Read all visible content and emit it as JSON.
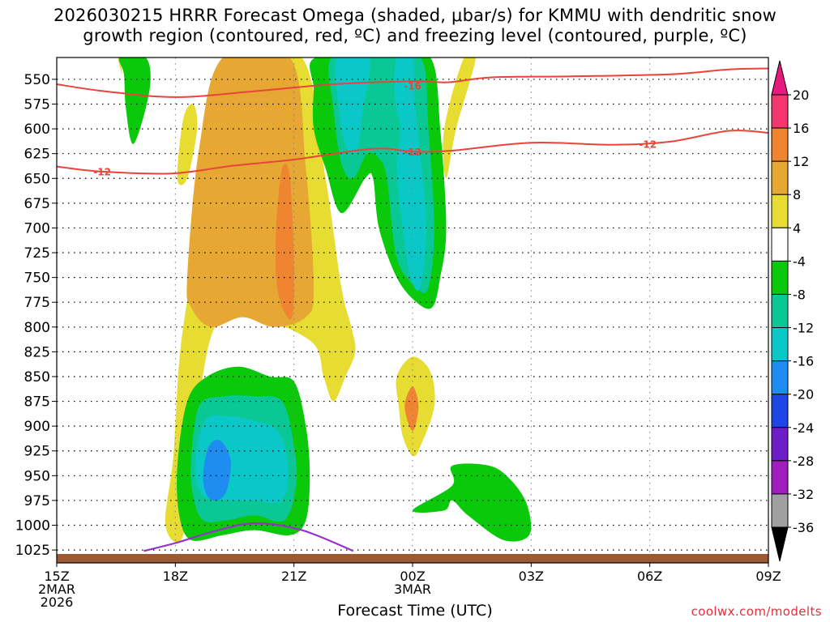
{
  "chart_data": {
    "type": "contour-timeheight",
    "title_line1": "2026030215 HRRR Forecast Omega (shaded, μbar/s) for KMMU with dendritic snow",
    "title_line2": "growth region (contoured, red, ºC) and freezing level (contoured, purple, ºC)",
    "xlabel": "Forecast Time (UTC)",
    "credit": "coolwx.com/modelts",
    "x_hours_range": [
      0,
      18
    ],
    "x_ticks": [
      {
        "h": 0,
        "lines": [
          "15Z",
          "2MAR",
          "2026"
        ]
      },
      {
        "h": 3,
        "lines": [
          "18Z"
        ]
      },
      {
        "h": 6,
        "lines": [
          "21Z"
        ]
      },
      {
        "h": 9,
        "lines": [
          "00Z",
          "3MAR"
        ]
      },
      {
        "h": 12,
        "lines": [
          "03Z"
        ]
      },
      {
        "h": 15,
        "lines": [
          "06Z"
        ]
      },
      {
        "h": 18,
        "lines": [
          "09Z"
        ]
      }
    ],
    "y_range_hpa": [
      528,
      1038
    ],
    "y_ticks": [
      550,
      575,
      600,
      625,
      650,
      675,
      700,
      725,
      750,
      775,
      800,
      825,
      850,
      875,
      900,
      925,
      950,
      975,
      1000,
      1025
    ],
    "colorbar": {
      "labels": [
        "20",
        "16",
        "12",
        "8",
        "4",
        "-4",
        "-8",
        "-12",
        "-16",
        "-20",
        "-24",
        "-28",
        "-32",
        "-36"
      ],
      "levels": [
        20,
        16,
        12,
        8,
        4,
        -4,
        -8,
        -12,
        -16,
        -20,
        -24,
        -28,
        -32,
        -36
      ],
      "colors": [
        "#f4366f",
        "#ef8431",
        "#e6a832",
        "#e6dc32",
        "#ffffff",
        "#0ac80a",
        "#0ac896",
        "#0ac8c8",
        "#1e8cf0",
        "#1e46e6",
        "#6e1ec8",
        "#a01ebe",
        "#a0a0a0"
      ],
      "top_arrow_color": "#e6197d",
      "bottom_arrow_color": "#000000"
    },
    "omega_regions": [
      {
        "level": 4,
        "color": "#e6dc32",
        "points": [
          [
            2.75,
            1000
          ],
          [
            2.95,
            930
          ],
          [
            3.15,
            815
          ],
          [
            3.7,
            680
          ],
          [
            4.1,
            570
          ],
          [
            4.5,
            528
          ],
          [
            6.2,
            528
          ],
          [
            6.8,
            650
          ],
          [
            7.2,
            760
          ],
          [
            7.45,
            800
          ],
          [
            7.55,
            825
          ],
          [
            7.3,
            850
          ],
          [
            7.0,
            875
          ],
          [
            6.75,
            850
          ],
          [
            6.45,
            815
          ],
          [
            5.0,
            790
          ],
          [
            4.0,
            800
          ],
          [
            3.5,
            905
          ],
          [
            3.2,
            1010
          ]
        ]
      },
      {
        "level": 4,
        "color": "#e6dc32",
        "points": [
          [
            3.05,
            650
          ],
          [
            3.2,
            590
          ],
          [
            3.45,
            575
          ],
          [
            3.55,
            600
          ],
          [
            3.3,
            650
          ]
        ]
      },
      {
        "level": 4,
        "color": "#e6dc32",
        "points": [
          [
            1.6,
            528
          ],
          [
            1.65,
            545
          ],
          [
            1.55,
            528
          ]
        ]
      },
      {
        "level": 4,
        "color": "#e6dc32",
        "points": [
          [
            10.3,
            528
          ],
          [
            10.6,
            528
          ],
          [
            10.1,
            600
          ],
          [
            9.85,
            650
          ],
          [
            9.8,
            600
          ]
        ]
      },
      {
        "level": 4,
        "color": "#e6dc32",
        "points": [
          [
            8.6,
            850
          ],
          [
            9.0,
            830
          ],
          [
            9.45,
            845
          ],
          [
            9.55,
            880
          ],
          [
            9.2,
            920
          ],
          [
            9.0,
            930
          ],
          [
            8.75,
            910
          ],
          [
            8.65,
            880
          ]
        ]
      },
      {
        "level": 8,
        "color": "#e6a832",
        "points": [
          [
            3.3,
            750
          ],
          [
            3.6,
            620
          ],
          [
            4.2,
            528
          ],
          [
            5.9,
            528
          ],
          [
            6.3,
            640
          ],
          [
            6.5,
            760
          ],
          [
            6.3,
            790
          ],
          [
            5.5,
            800
          ],
          [
            4.7,
            790
          ],
          [
            3.9,
            800
          ],
          [
            3.4,
            780
          ]
        ]
      },
      {
        "level": 12,
        "color": "#ef8431",
        "points": [
          [
            5.55,
            700
          ],
          [
            5.7,
            640
          ],
          [
            5.9,
            650
          ],
          [
            6.0,
            740
          ],
          [
            5.95,
            790
          ],
          [
            5.7,
            780
          ],
          [
            5.55,
            750
          ]
        ]
      },
      {
        "level": 12,
        "color": "#ef8431",
        "points": [
          [
            8.8,
            880
          ],
          [
            9.0,
            860
          ],
          [
            9.15,
            880
          ],
          [
            9.0,
            905
          ]
        ]
      },
      {
        "level": -4,
        "color": "#0ac80a",
        "points": [
          [
            1.6,
            528
          ],
          [
            2.25,
            528
          ],
          [
            2.35,
            560
          ],
          [
            1.95,
            615
          ],
          [
            1.75,
            580
          ],
          [
            1.7,
            545
          ]
        ]
      },
      {
        "level": -4,
        "color": "#0ac80a",
        "points": [
          [
            6.55,
            528
          ],
          [
            8.4,
            528
          ],
          [
            9.45,
            528
          ],
          [
            9.7,
            600
          ],
          [
            9.85,
            700
          ],
          [
            9.7,
            750
          ],
          [
            9.5,
            780
          ],
          [
            9.1,
            775
          ],
          [
            8.6,
            750
          ],
          [
            8.15,
            700
          ],
          [
            8.0,
            650
          ],
          [
            7.8,
            650
          ],
          [
            7.2,
            685
          ],
          [
            6.8,
            640
          ],
          [
            6.5,
            600
          ],
          [
            6.5,
            560
          ]
        ]
      },
      {
        "level": -4,
        "color": "#0ac80a",
        "points": [
          [
            3.05,
            940
          ],
          [
            3.3,
            875
          ],
          [
            3.8,
            850
          ],
          [
            4.6,
            840
          ],
          [
            5.4,
            850
          ],
          [
            6.0,
            855
          ],
          [
            6.3,
            900
          ],
          [
            6.4,
            950
          ],
          [
            6.3,
            995
          ],
          [
            5.9,
            1010
          ],
          [
            5.0,
            1005
          ],
          [
            4.2,
            1010
          ],
          [
            3.4,
            1015
          ],
          [
            3.1,
            990
          ]
        ]
      },
      {
        "level": -4,
        "color": "#0ac80a",
        "points": [
          [
            10.0,
            940
          ],
          [
            10.95,
            940
          ],
          [
            11.5,
            955
          ],
          [
            11.9,
            980
          ],
          [
            11.95,
            1010
          ],
          [
            11.3,
            1015
          ],
          [
            10.4,
            990
          ],
          [
            10.0,
            975
          ],
          [
            9.8,
            985
          ],
          [
            9.0,
            985
          ],
          [
            10.0,
            960
          ]
        ]
      },
      {
        "level": -8,
        "color": "#0ac896",
        "points": [
          [
            6.95,
            528
          ],
          [
            8.1,
            528
          ],
          [
            9.2,
            528
          ],
          [
            9.4,
            600
          ],
          [
            9.55,
            700
          ],
          [
            9.4,
            760
          ],
          [
            9.1,
            760
          ],
          [
            8.6,
            730
          ],
          [
            8.35,
            650
          ],
          [
            8.15,
            630
          ],
          [
            7.85,
            625
          ],
          [
            7.5,
            650
          ],
          [
            7.2,
            635
          ],
          [
            7.0,
            580
          ]
        ]
      },
      {
        "level": -8,
        "color": "#0ac896",
        "points": [
          [
            3.4,
            935
          ],
          [
            3.6,
            880
          ],
          [
            4.2,
            870
          ],
          [
            5.0,
            870
          ],
          [
            5.7,
            875
          ],
          [
            6.0,
            920
          ],
          [
            6.05,
            960
          ],
          [
            5.75,
            995
          ],
          [
            5.0,
            990
          ],
          [
            4.3,
            995
          ],
          [
            3.7,
            995
          ],
          [
            3.45,
            970
          ]
        ]
      },
      {
        "level": -12,
        "color": "#0ac8c8",
        "points": [
          [
            7.1,
            528
          ],
          [
            7.9,
            528
          ],
          [
            7.75,
            580
          ],
          [
            7.6,
            620
          ],
          [
            7.35,
            620
          ],
          [
            7.15,
            585
          ]
        ]
      },
      {
        "level": -12,
        "color": "#0ac8c8",
        "points": [
          [
            8.6,
            528
          ],
          [
            9.0,
            528
          ],
          [
            9.05,
            570
          ],
          [
            9.2,
            630
          ],
          [
            9.35,
            700
          ],
          [
            9.2,
            760
          ],
          [
            8.95,
            750
          ],
          [
            8.75,
            700
          ],
          [
            8.6,
            640
          ],
          [
            8.7,
            600
          ],
          [
            8.55,
            570
          ]
        ]
      },
      {
        "level": -12,
        "color": "#0ac8c8",
        "points": [
          [
            3.5,
            940
          ],
          [
            3.75,
            895
          ],
          [
            4.3,
            890
          ],
          [
            5.0,
            895
          ],
          [
            5.6,
            905
          ],
          [
            5.85,
            940
          ],
          [
            5.7,
            975
          ],
          [
            5.0,
            975
          ],
          [
            4.3,
            975
          ],
          [
            3.7,
            970
          ]
        ]
      },
      {
        "level": -16,
        "color": "#1e8cf0",
        "points": [
          [
            3.7,
            950
          ],
          [
            3.85,
            920
          ],
          [
            4.15,
            915
          ],
          [
            4.4,
            935
          ],
          [
            4.3,
            965
          ],
          [
            4.05,
            975
          ],
          [
            3.8,
            970
          ]
        ]
      }
    ],
    "dgz_isotherms": [
      {
        "label": "-16",
        "color": "#e8443c",
        "label_at": [
          9.0,
          556
        ],
        "points": [
          [
            0,
            555
          ],
          [
            1.2,
            562
          ],
          [
            3.0,
            568
          ],
          [
            5.0,
            562
          ],
          [
            7.0,
            555
          ],
          [
            9.0,
            552
          ],
          [
            9.9,
            553
          ],
          [
            11.0,
            548
          ],
          [
            13.0,
            547
          ],
          [
            15.5,
            545
          ],
          [
            17.0,
            540
          ],
          [
            18.0,
            539
          ]
        ]
      },
      {
        "label": "-12",
        "color": "#e8443c",
        "label_at": [
          1.15,
          643
        ],
        "points": [
          [
            0,
            638
          ],
          [
            1.1,
            643
          ],
          [
            2.9,
            645
          ],
          [
            4.5,
            637
          ],
          [
            6.0,
            631
          ],
          [
            8.0,
            620
          ],
          [
            9.0,
            623
          ],
          [
            10.0,
            622
          ],
          [
            12.0,
            614
          ],
          [
            14.0,
            616
          ],
          [
            15.5,
            613
          ],
          [
            17.0,
            602
          ],
          [
            18.0,
            604
          ]
        ]
      },
      {
        "label": "-12",
        "color": "#e8443c",
        "label_at": [
          9.0,
          623
        ],
        "points": []
      },
      {
        "label": "-12",
        "color": "#e8443c",
        "label_at": [
          14.95,
          615
        ],
        "points": []
      }
    ],
    "freezing_level": {
      "color": "#9632c8",
      "points": [
        [
          2.2,
          1026
        ],
        [
          3.0,
          1018
        ],
        [
          4.0,
          1006
        ],
        [
          5.0,
          998
        ],
        [
          6.2,
          1005
        ],
        [
          7.5,
          1026
        ]
      ]
    },
    "terrain": {
      "color": "#9c5a32",
      "top_hpa": 1029
    },
    "grid": true
  }
}
